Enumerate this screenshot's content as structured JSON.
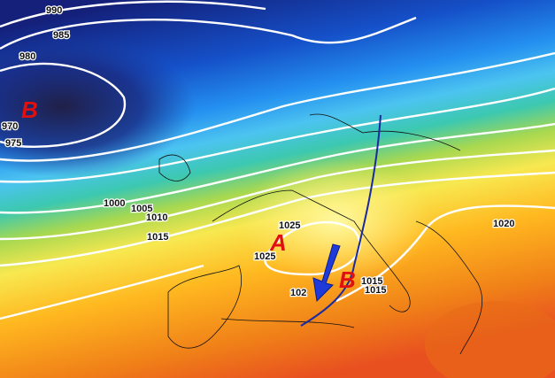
{
  "isobar_labels": [
    "990",
    "985",
    "980",
    "970",
    "975",
    "1000",
    "1005",
    "1010",
    "1015",
    "1025",
    "1025",
    "102",
    "1015",
    "1015",
    "1020"
  ],
  "pressure_centers": [
    "B",
    "A",
    "B"
  ]
}
